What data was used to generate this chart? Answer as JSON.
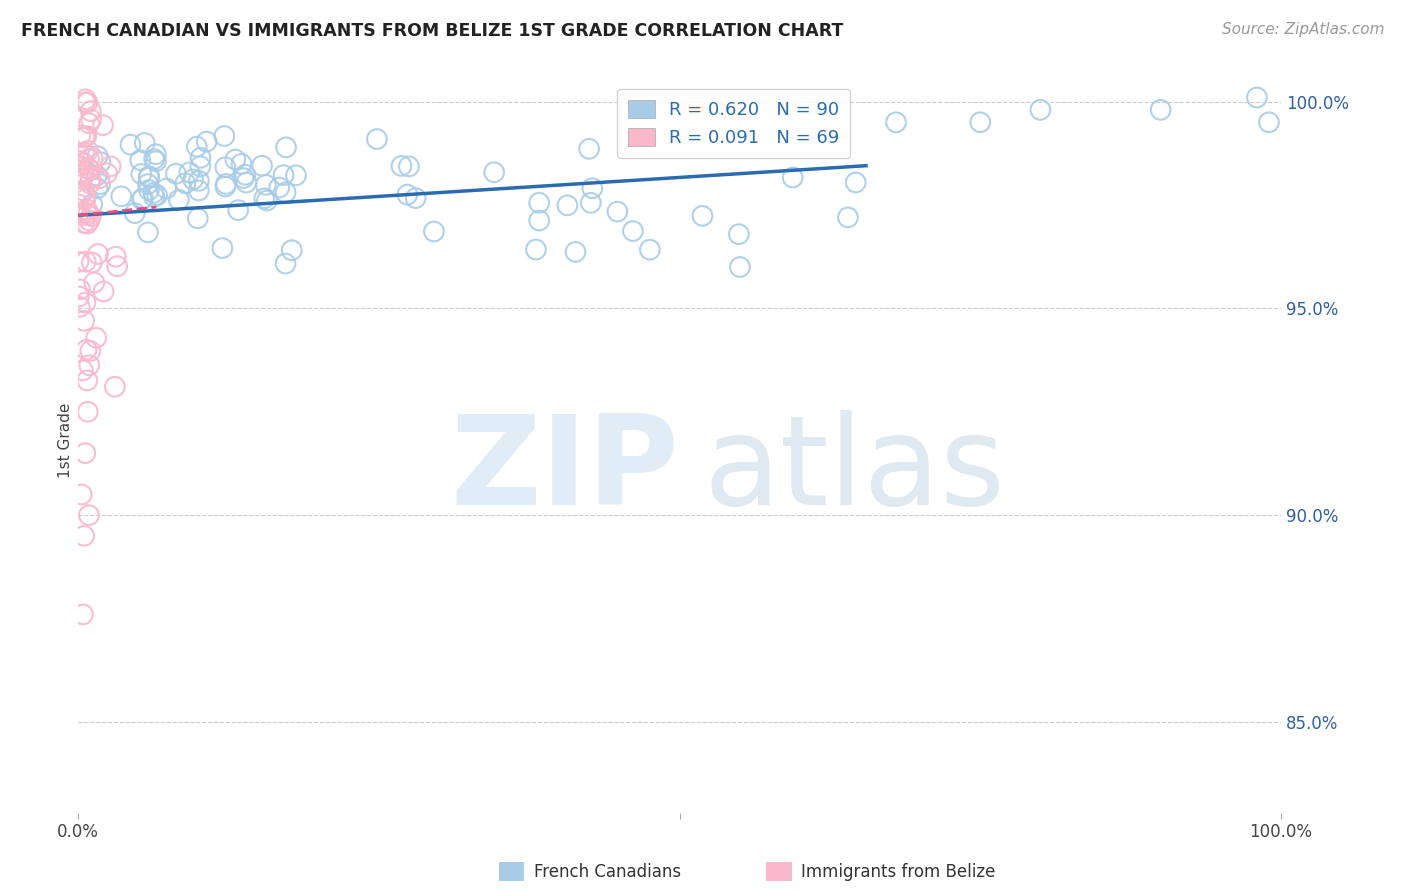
{
  "title": "FRENCH CANADIAN VS IMMIGRANTS FROM BELIZE 1ST GRADE CORRELATION CHART",
  "source": "Source: ZipAtlas.com",
  "ylabel": "1st Grade",
  "xlim": [
    0.0,
    1.0
  ],
  "ylim": [
    0.828,
    1.008
  ],
  "ytick_values": [
    0.85,
    0.9,
    0.95,
    1.0
  ],
  "ytick_labels": [
    "85.0%",
    "90.0%",
    "95.0%",
    "100.0%"
  ],
  "blue_color": "#a8cce8",
  "pink_color": "#f9b8cb",
  "blue_line_color": "#2b6cb0",
  "pink_line_color": "#e05080",
  "legend_blue_label": "R = 0.620   N = 90",
  "legend_pink_label": "R = 0.091   N = 69",
  "watermark_zip_color": "#c8dff0",
  "watermark_atlas_color": "#b8cfe0",
  "background_color": "#ffffff",
  "grid_color": "#cccccc",
  "title_color": "#222222",
  "axis_label_color": "#444444",
  "tick_label_color_x": "#444444",
  "tick_label_color_y": "#3060a0",
  "source_color": "#999999",
  "legend_text_color": "#2b6cb0",
  "legend_value_color": "#2b6cb0"
}
